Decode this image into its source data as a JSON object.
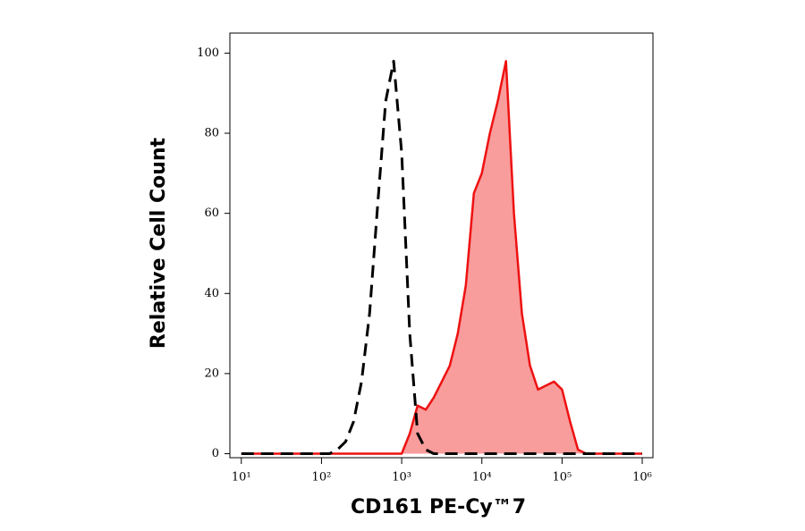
{
  "chart_data": {
    "type": "histogram-overlay",
    "x_label": "CD161 PE-Cy™7",
    "y_label": "Relative Cell Count",
    "xscale": "log",
    "xlim": [
      7.2,
      1360000
    ],
    "ylim": [
      -1,
      105
    ],
    "xticks": [
      {
        "value": 10,
        "label": "10¹"
      },
      {
        "value": 100,
        "label": "10²"
      },
      {
        "value": 1000,
        "label": "10³"
      },
      {
        "value": 10000,
        "label": "10⁴"
      },
      {
        "value": 100000,
        "label": "10⁵"
      },
      {
        "value": 1000000,
        "label": "10⁶"
      }
    ],
    "yticks": [
      0,
      20,
      40,
      60,
      80,
      100
    ],
    "x": [
      10,
      12.6,
      15.8,
      20,
      25.1,
      31.6,
      39.8,
      50.1,
      63.1,
      79.4,
      100,
      126,
      158,
      200,
      251,
      316,
      398,
      501,
      631,
      794,
      1000,
      1260,
      1580,
      2000,
      2510,
      3160,
      3980,
      5010,
      6310,
      7940,
      10000,
      12600,
      15800,
      20000,
      25100,
      31600,
      39800,
      50100,
      63100,
      79400,
      100000,
      126000,
      158000,
      200000,
      251000,
      316000,
      398000,
      501000,
      631000,
      794000,
      1000000
    ],
    "series": [
      {
        "color": "#000000",
        "line_style": "dashed",
        "values": [
          0,
          0,
          0,
          0,
          0,
          0,
          0,
          0,
          0,
          0,
          0,
          0,
          1,
          3,
          8,
          18,
          35,
          62,
          88,
          98,
          75,
          30,
          5,
          1,
          0,
          0,
          0,
          0,
          0,
          0,
          0,
          0,
          0,
          0,
          0,
          0,
          0,
          0,
          0,
          0,
          0,
          0,
          0,
          0,
          0,
          0,
          0,
          0,
          0,
          0,
          0
        ]
      },
      {
        "color": "#ee1111",
        "line_style": "solid",
        "fill_color": "rgba(245,90,90,0.6)",
        "values": [
          0,
          0,
          0,
          0,
          0,
          0,
          0,
          0,
          0,
          0,
          0,
          0,
          0,
          0,
          0,
          0,
          0,
          0,
          0,
          0,
          0,
          5,
          12,
          11,
          14,
          18,
          22,
          30,
          42,
          65,
          70,
          80,
          88,
          98,
          60,
          35,
          22,
          16,
          17,
          18,
          16,
          8,
          1,
          0,
          0,
          0,
          0,
          0,
          0,
          0,
          0
        ]
      }
    ]
  }
}
